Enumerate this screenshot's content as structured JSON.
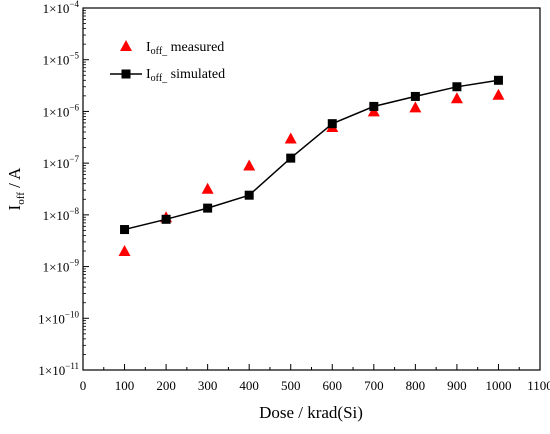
{
  "chart_data": {
    "type": "scatter",
    "xlabel": "Dose / krad(Si)",
    "ylabel": {
      "main": "I",
      "sub": "off",
      "rest": " / A"
    },
    "xlim": [
      0,
      1100
    ],
    "ylim_exp": [
      -11,
      -4
    ],
    "yscale": "log",
    "x_ticks": [
      0,
      100,
      200,
      300,
      400,
      500,
      600,
      700,
      800,
      900,
      1000,
      1100
    ],
    "y_ticks": [
      {
        "base": "1×10",
        "exp": "−11"
      },
      {
        "base": "1×10",
        "exp": "−10"
      },
      {
        "base": "1×10",
        "exp": "−9"
      },
      {
        "base": "1×10",
        "exp": "−8"
      },
      {
        "base": "1×10",
        "exp": "−7"
      },
      {
        "base": "1×10",
        "exp": "−6"
      },
      {
        "base": "1×10",
        "exp": "−5"
      },
      {
        "base": "1×10",
        "exp": "−4"
      }
    ],
    "legend_position": "top-left",
    "series": [
      {
        "name": {
          "main": "I",
          "sub": "off_",
          "rest": " measured"
        },
        "marker": "triangle",
        "line": false,
        "color": "#ff0000",
        "points": [
          {
            "x": 100,
            "y": 2e-09
          },
          {
            "x": 200,
            "y": 9e-09
          },
          {
            "x": 300,
            "y": 3.2e-08
          },
          {
            "x": 400,
            "y": 9e-08
          },
          {
            "x": 500,
            "y": 3e-07
          },
          {
            "x": 600,
            "y": 5e-07
          },
          {
            "x": 700,
            "y": 1e-06
          },
          {
            "x": 800,
            "y": 1.2e-06
          },
          {
            "x": 900,
            "y": 1.8e-06
          },
          {
            "x": 1000,
            "y": 2.1e-06
          }
        ]
      },
      {
        "name": {
          "main": "I",
          "sub": "off_",
          "rest": " simulated"
        },
        "marker": "square",
        "line": true,
        "color": "#000000",
        "points": [
          {
            "x": 100,
            "y": 5.2e-09
          },
          {
            "x": 200,
            "y": 8.2e-09
          },
          {
            "x": 300,
            "y": 1.35e-08
          },
          {
            "x": 400,
            "y": 2.4e-08
          },
          {
            "x": 500,
            "y": 1.25e-07
          },
          {
            "x": 600,
            "y": 5.8e-07
          },
          {
            "x": 700,
            "y": 1.25e-06
          },
          {
            "x": 800,
            "y": 1.95e-06
          },
          {
            "x": 900,
            "y": 3e-06
          },
          {
            "x": 1000,
            "y": 4e-06
          }
        ]
      }
    ]
  }
}
